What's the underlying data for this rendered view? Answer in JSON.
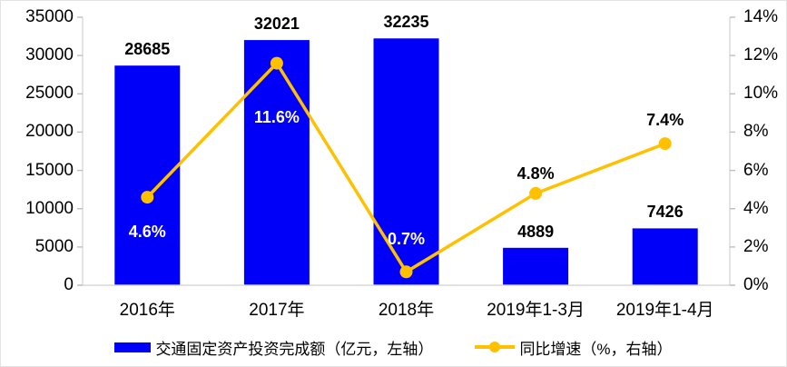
{
  "chart_data": {
    "type": "combo",
    "title": "",
    "categories": [
      "2016年",
      "2017年",
      "2018年",
      "2019年1-3月",
      "2019年1-4月"
    ],
    "series": [
      {
        "name": "交通固定资产投资完成额（亿元，左轴）",
        "type": "bar",
        "axis": "left",
        "color": "#0000fa",
        "values": [
          28685,
          32021,
          32235,
          4889,
          7426
        ],
        "data_labels": [
          "28685",
          "32021",
          "32235",
          "4889",
          "7426"
        ]
      },
      {
        "name": "同比增速（%，右轴）",
        "type": "line",
        "axis": "right",
        "color": "#ffc000",
        "values": [
          4.6,
          11.6,
          0.7,
          4.8,
          7.4
        ],
        "data_labels": [
          "4.6%",
          "11.6%",
          "0.7%",
          "4.8%",
          "7.4%"
        ],
        "data_label_colors": [
          "#ffffff",
          "#ffffff",
          "#ffffff",
          "#000000",
          "#000000"
        ],
        "data_label_offset_y": [
          38,
          59,
          -36,
          -22,
          -26
        ]
      }
    ],
    "left_axis": {
      "min": 0,
      "max": 35000,
      "step": 5000,
      "tick_labels": [
        "0",
        "5000",
        "10000",
        "15000",
        "20000",
        "25000",
        "30000",
        "35000"
      ]
    },
    "right_axis": {
      "min": 0,
      "max": 14,
      "step": 2,
      "tick_labels": [
        "0%",
        "2%",
        "4%",
        "6%",
        "8%",
        "10%",
        "12%",
        "14%"
      ]
    },
    "grid": false,
    "legend_position": "bottom"
  },
  "colors": {
    "bar": "#0000fa",
    "line": "#ffc000",
    "axis_line": "#d9d9d9",
    "tick_mark": "#bfbfbf",
    "text": "#000000",
    "background": "#ffffff"
  }
}
